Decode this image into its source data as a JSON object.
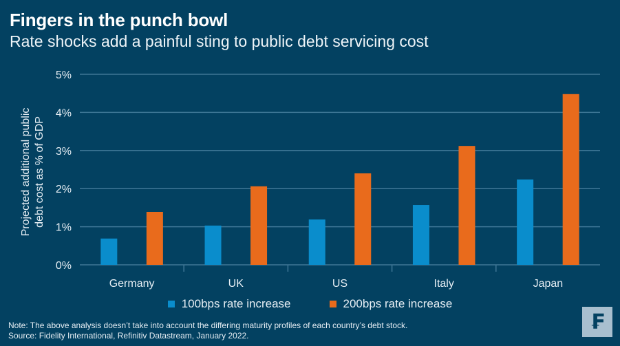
{
  "header": {
    "title": "Fingers in the punch bowl",
    "subtitle": "Rate shocks add a painful sting to public debt servicing cost"
  },
  "chart_data": {
    "type": "bar",
    "title": "Fingers in the punch bowl",
    "subtitle": "Rate shocks add a painful sting to public debt servicing cost",
    "xlabel": "",
    "ylabel_lines": [
      "Projected additional public",
      "debt cost as % of GDP"
    ],
    "ylim": [
      0,
      5
    ],
    "yticks": [
      0,
      1,
      2,
      3,
      4,
      5
    ],
    "ytick_labels": [
      "0%",
      "1%",
      "2%",
      "3%",
      "4%",
      "5%"
    ],
    "categories": [
      "Germany",
      "UK",
      "US",
      "Italy",
      "Japan"
    ],
    "series": [
      {
        "name": "100bps rate increase",
        "color": "#0a8dcc",
        "values": [
          0.69,
          1.03,
          1.19,
          1.57,
          2.24
        ]
      },
      {
        "name": "200bps rate increase",
        "color": "#e96b1c",
        "values": [
          1.39,
          2.06,
          2.4,
          3.12,
          4.48
        ]
      }
    ],
    "grid": true,
    "legend_position": "bottom-center"
  },
  "footer": {
    "note": "Note: The above analysis doesn’t take into account the differing maturity profiles of each country’s debt stock.",
    "source": "Source: Fidelity International, Refinitiv Datastream, January 2022."
  },
  "logo": {
    "glyph": "₣",
    "icon": "fidelity-logo-icon"
  }
}
